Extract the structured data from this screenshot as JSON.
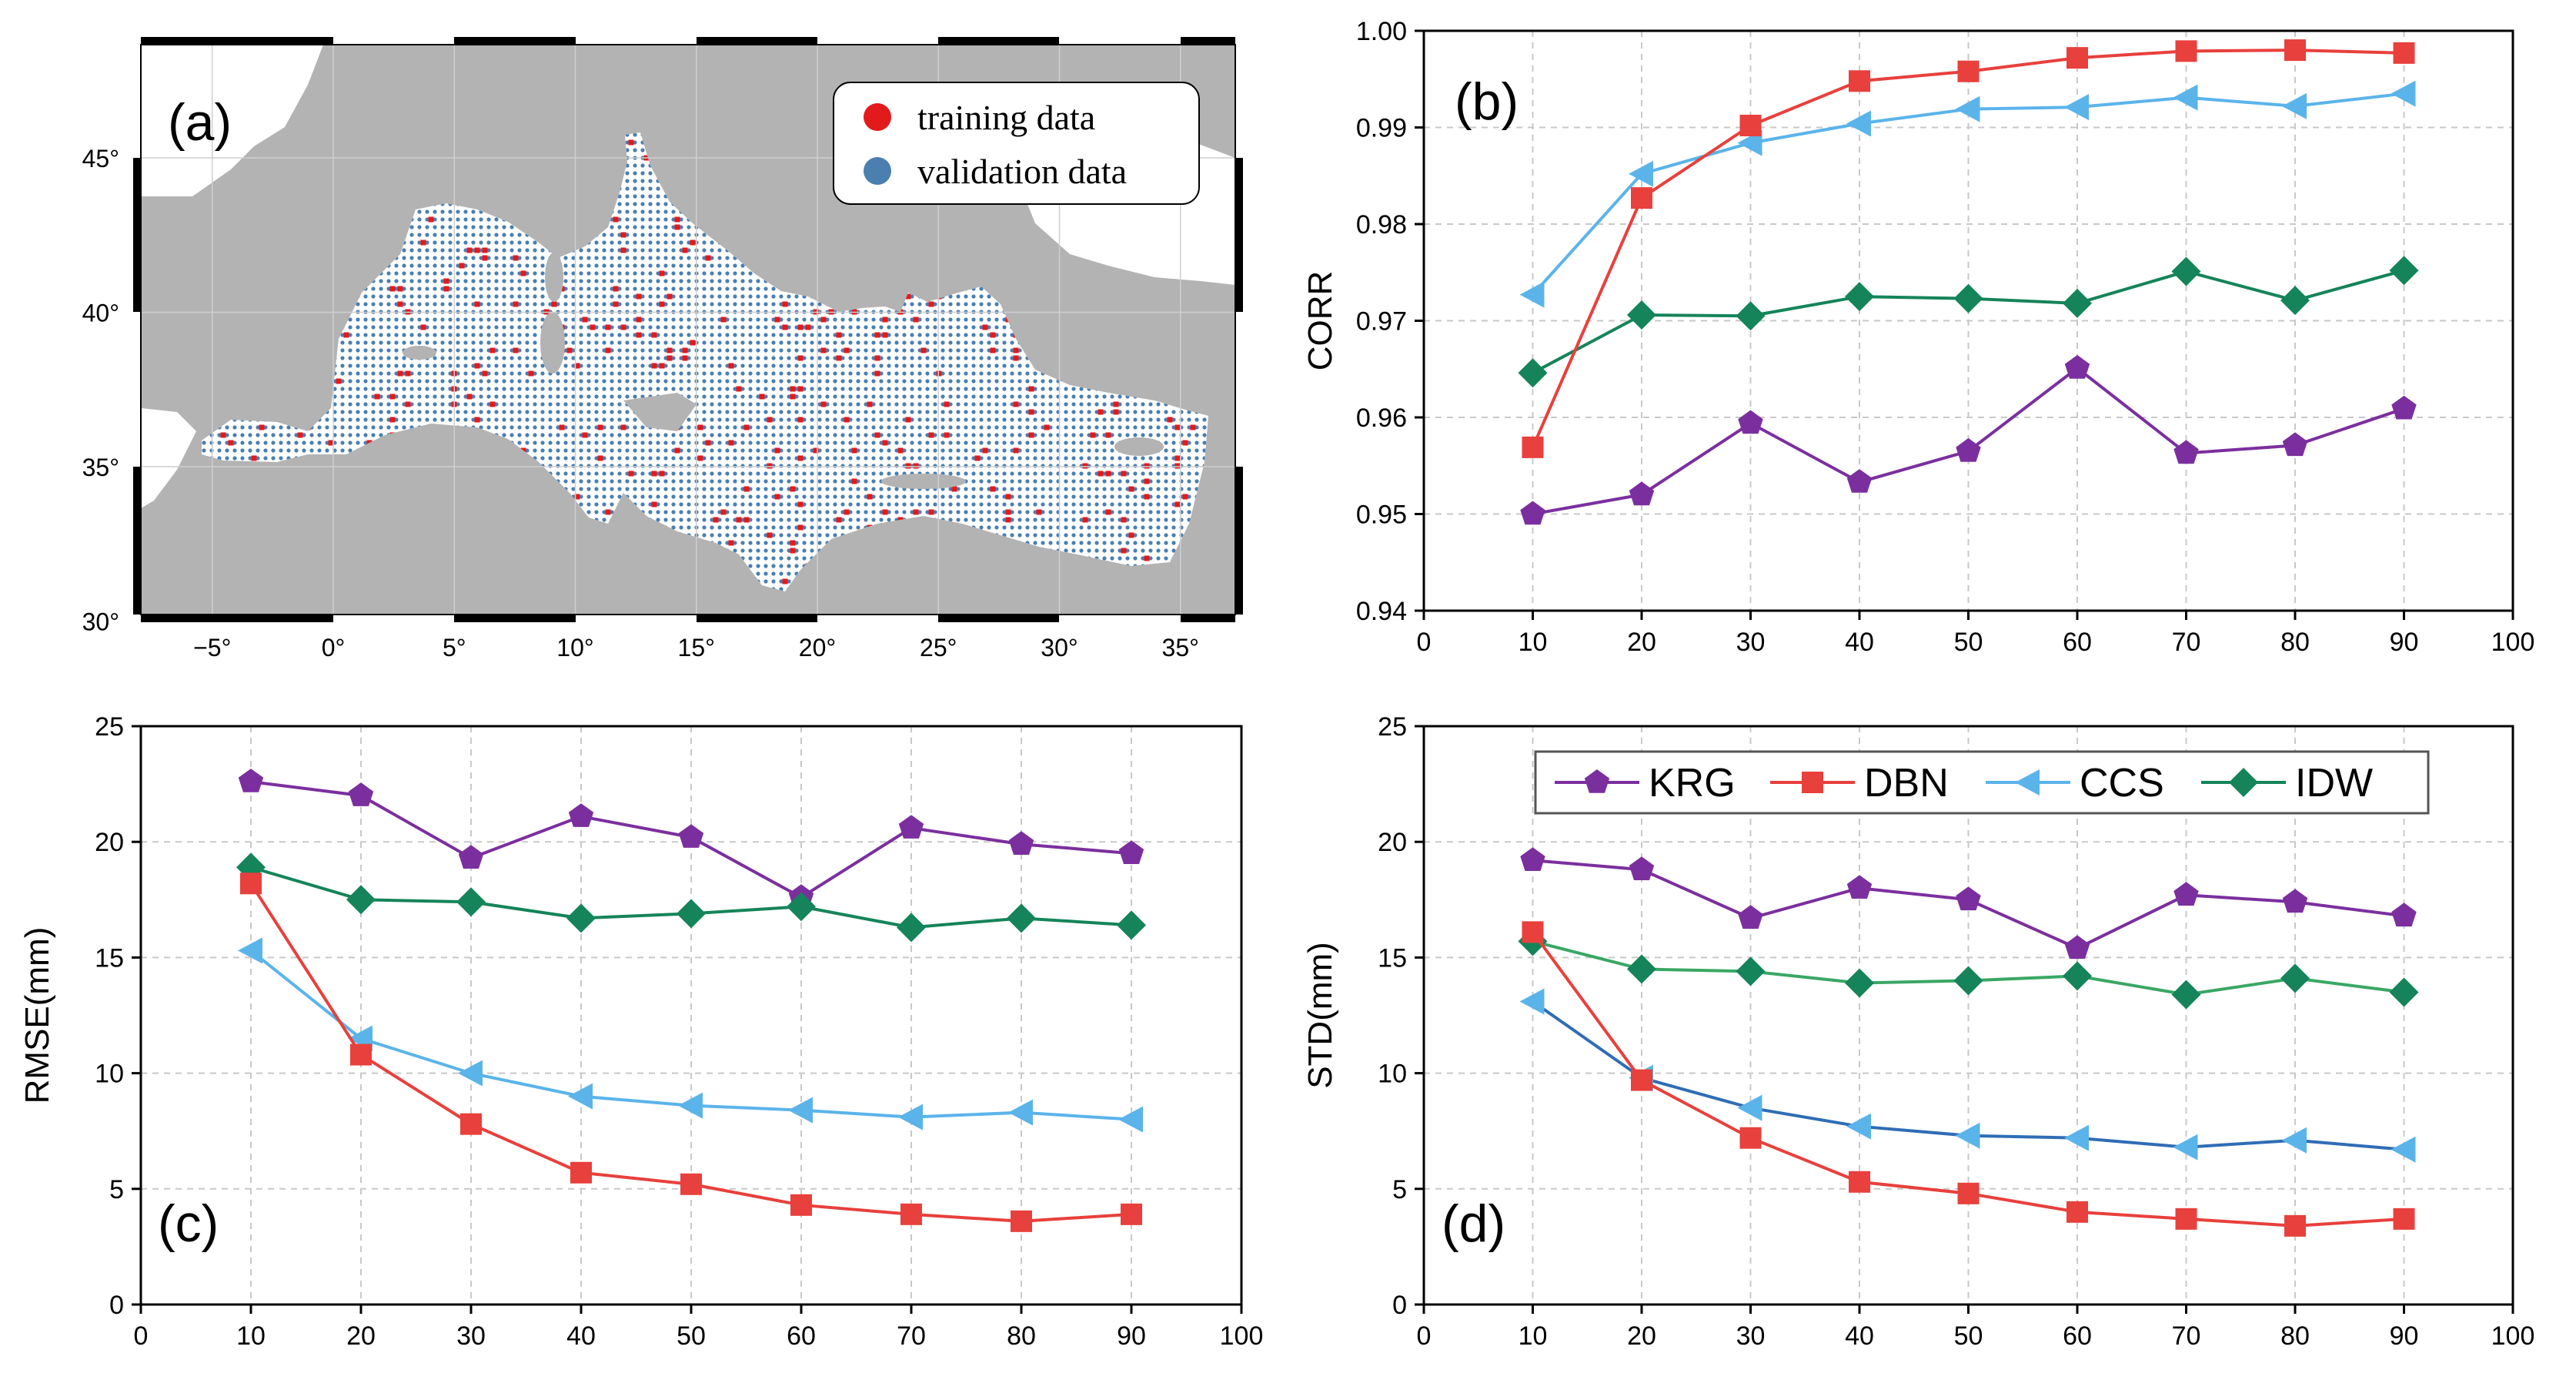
{
  "colors": {
    "KRG": "#7b2f9e",
    "DBN": "#e8403c",
    "CCS": "#5ab4ea",
    "CCS_std": "#2f6db5",
    "IDW": "#15845a",
    "IDW_std": "#3aa765",
    "land": "#b3b3b3",
    "training": "#e31a1c",
    "validation": "#4a7fb0"
  },
  "map": {
    "panel_label": "(a)",
    "legend": [
      "training data",
      "validation data"
    ],
    "x_ticks": [
      "−5°",
      "0°",
      "5°",
      "10°",
      "15°",
      "20°",
      "25°",
      "30°",
      "35°"
    ],
    "y_ticks": [
      "45°",
      "40°",
      "35°",
      "30°"
    ]
  },
  "chart_data": [
    {
      "panel": "(b)",
      "type": "line",
      "ylabel": "CORR",
      "x": [
        10,
        20,
        30,
        40,
        50,
        60,
        70,
        80,
        90
      ],
      "xlim": [
        0,
        100
      ],
      "ylim": [
        0.94,
        1.0
      ],
      "x_ticks": [
        "0",
        "10",
        "20",
        "30",
        "40",
        "50",
        "60",
        "70",
        "80",
        "90",
        "100"
      ],
      "y_ticks": [
        "0.94",
        "0.95",
        "0.96",
        "0.97",
        "0.98",
        "0.99",
        "1.00"
      ],
      "series": [
        {
          "name": "KRG",
          "values": [
            0.95,
            0.952,
            0.9594,
            0.9533,
            0.9565,
            0.9651,
            0.9563,
            0.9571,
            0.9609
          ]
        },
        {
          "name": "DBN",
          "values": [
            0.9569,
            0.9827,
            0.9902,
            0.9948,
            0.9958,
            0.9972,
            0.9979,
            0.998,
            0.9977
          ]
        },
        {
          "name": "CCS",
          "values": [
            0.9727,
            0.9852,
            0.9884,
            0.9904,
            0.9919,
            0.9921,
            0.9931,
            0.9922,
            0.9935
          ]
        },
        {
          "name": "IDW",
          "values": [
            0.9646,
            0.9706,
            0.9705,
            0.9725,
            0.9723,
            0.9718,
            0.9751,
            0.9721,
            0.9752
          ]
        }
      ]
    },
    {
      "panel": "(c)",
      "type": "line",
      "ylabel": "RMSE(mm)",
      "x": [
        10,
        20,
        30,
        40,
        50,
        60,
        70,
        80,
        90
      ],
      "xlim": [
        0,
        100
      ],
      "ylim": [
        0,
        25
      ],
      "x_ticks": [
        "0",
        "10",
        "20",
        "30",
        "40",
        "50",
        "60",
        "70",
        "80",
        "90",
        "100"
      ],
      "y_ticks": [
        "0",
        "5",
        "10",
        "15",
        "20",
        "25"
      ],
      "series": [
        {
          "name": "KRG",
          "values": [
            22.6,
            22.0,
            19.3,
            21.1,
            20.2,
            17.6,
            20.6,
            19.9,
            19.5
          ]
        },
        {
          "name": "DBN",
          "values": [
            18.2,
            10.8,
            7.8,
            5.7,
            5.2,
            4.3,
            3.9,
            3.6,
            3.9
          ]
        },
        {
          "name": "CCS",
          "values": [
            15.3,
            11.5,
            10.0,
            9.0,
            8.6,
            8.4,
            8.1,
            8.3,
            8.0
          ]
        },
        {
          "name": "IDW",
          "values": [
            18.9,
            17.5,
            17.4,
            16.7,
            16.9,
            17.2,
            16.3,
            16.7,
            16.4
          ]
        }
      ]
    },
    {
      "panel": "(d)",
      "type": "line",
      "ylabel": "STD(mm)",
      "x": [
        10,
        20,
        30,
        40,
        50,
        60,
        70,
        80,
        90
      ],
      "xlim": [
        0,
        100
      ],
      "ylim": [
        0,
        25
      ],
      "x_ticks": [
        "0",
        "10",
        "20",
        "30",
        "40",
        "50",
        "60",
        "70",
        "80",
        "90",
        "100"
      ],
      "y_ticks": [
        "0",
        "5",
        "10",
        "15",
        "20",
        "25"
      ],
      "legend": [
        "KRG",
        "DBN",
        "CCS",
        "IDW"
      ],
      "series": [
        {
          "name": "KRG",
          "values": [
            19.2,
            18.8,
            16.7,
            18.0,
            17.5,
            15.4,
            17.7,
            17.4,
            16.8
          ]
        },
        {
          "name": "DBN",
          "values": [
            16.1,
            9.7,
            7.2,
            5.3,
            4.8,
            4.0,
            3.7,
            3.4,
            3.7
          ]
        },
        {
          "name": "CCS",
          "values": [
            13.1,
            9.8,
            8.5,
            7.7,
            7.3,
            7.2,
            6.8,
            7.1,
            6.7
          ]
        },
        {
          "name": "IDW",
          "values": [
            15.7,
            14.5,
            14.4,
            13.9,
            14.0,
            14.2,
            13.4,
            14.1,
            13.5
          ]
        }
      ]
    }
  ]
}
